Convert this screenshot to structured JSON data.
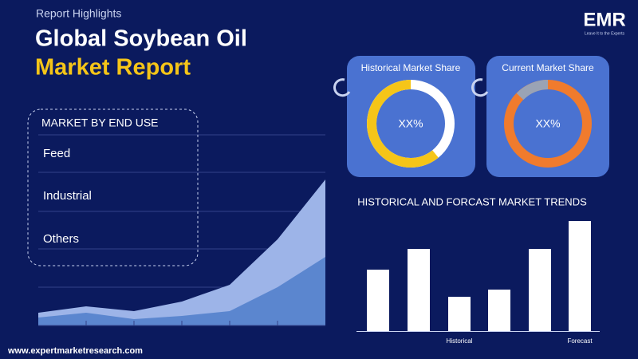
{
  "header": {
    "kicker": "Report Highlights",
    "title_line1": "Global Soybean Oil",
    "title_line2": "Market Report"
  },
  "logo": {
    "name": "EMR",
    "tagline": "Leave It to the Experts"
  },
  "segments": {
    "title": "MARKET BY END USE",
    "items": [
      "Feed",
      "Industrial",
      "Others"
    ]
  },
  "cards": [
    {
      "title": "Historical Market Share",
      "value": "XX%"
    },
    {
      "title": "Current Market Share",
      "value": "XX%"
    }
  ],
  "trends": {
    "title": "HISTORICAL AND FORCAST MARKET TRENDS",
    "labels": [
      "Historical",
      "Forecast"
    ]
  },
  "footer": {
    "url": "www.expertmarketresearch.com"
  }
}
